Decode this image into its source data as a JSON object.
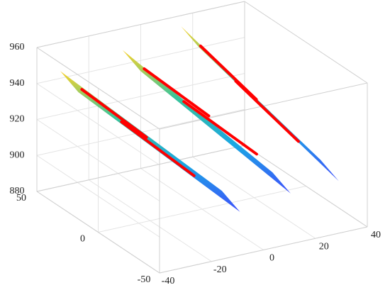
{
  "chart_data": {
    "type": "surface3d",
    "xlim": [
      -40,
      40
    ],
    "xticks": [
      -40,
      -20,
      0,
      20,
      40
    ],
    "ylim": [
      -50,
      50
    ],
    "yticks": [
      -50,
      0,
      50
    ],
    "zlim": [
      880,
      960
    ],
    "zticks": [
      880,
      900,
      920,
      940,
      960
    ],
    "grid": true,
    "colormap": [
      "#fad22a",
      "#38c49a",
      "#1aa6e4",
      "#3e4ffb"
    ],
    "line_color": "#ff0000",
    "surfaces": [
      {
        "corners": [
          [
            -31,
            50,
            944
          ],
          [
            -24,
            50,
            930
          ],
          [
            -9,
            -50,
            904
          ],
          [
            -16,
            -50,
            918
          ]
        ],
        "lines": [
          [
            -27.4,
            40,
            937.2,
            -21.4,
            0,
            926.8
          ],
          [
            -21.6,
            20,
            926.4,
            -14.9,
            -25,
            914.7
          ]
        ]
      },
      {
        "corners": [
          [
            -7,
            50,
            948
          ],
          [
            0,
            50,
            934
          ],
          [
            10.5,
            -50,
            908
          ],
          [
            3.5,
            -50,
            922
          ]
        ],
        "lines": [
          [
            -3.4,
            40,
            941,
            2.6,
            0,
            931
          ],
          [
            2.4,
            20,
            930,
            9.2,
            -25,
            919
          ]
        ]
      },
      {
        "corners": [
          [
            15.5,
            50,
            954
          ],
          [
            22.5,
            50,
            940
          ],
          [
            29,
            -50,
            909
          ],
          [
            22,
            -50,
            923
          ]
        ],
        "lines": [
          [
            18.3,
            40,
            946.7,
            20.9,
            0,
            934.3
          ],
          [
            22.4,
            20,
            934.9,
            25.3,
            -25,
            920.9
          ]
        ]
      }
    ]
  }
}
